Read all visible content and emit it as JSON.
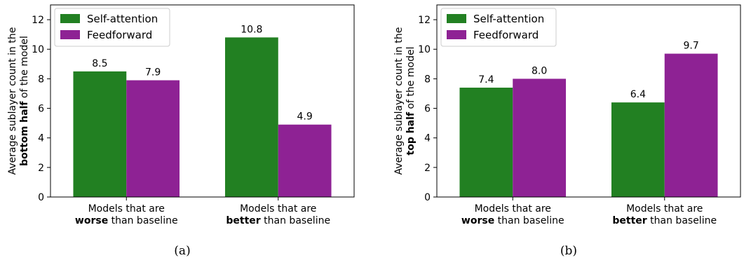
{
  "colors": {
    "self_attention": "#228022",
    "feedforward": "#8e2294"
  },
  "chart_data": [
    {
      "type": "bar",
      "panel_label": "(a)",
      "ylabel": [
        "Average sublayer count in the",
        "bottom half",
        " of the model"
      ],
      "ylim": [
        0,
        13
      ],
      "yticks": [
        0,
        2,
        4,
        6,
        8,
        10,
        12
      ],
      "categories": [
        [
          "Models that are",
          "worse",
          " than baseline"
        ],
        [
          "Models that are",
          "better",
          " than baseline"
        ]
      ],
      "series": [
        {
          "name": "Self-attention",
          "values": [
            8.5,
            10.8
          ],
          "labels": [
            "8.5",
            "10.8"
          ]
        },
        {
          "name": "Feedforward",
          "values": [
            7.9,
            4.9
          ],
          "labels": [
            "7.9",
            "4.9"
          ]
        }
      ],
      "legend": "top-left",
      "grid": false
    },
    {
      "type": "bar",
      "panel_label": "(b)",
      "ylabel": [
        "Average sublayer count in the",
        "top half",
        " of the model"
      ],
      "ylim": [
        0,
        13
      ],
      "yticks": [
        0,
        2,
        4,
        6,
        8,
        10,
        12
      ],
      "categories": [
        [
          "Models that are",
          "worse",
          " than baseline"
        ],
        [
          "Models that are",
          "better",
          " than baseline"
        ]
      ],
      "series": [
        {
          "name": "Self-attention",
          "values": [
            7.4,
            6.4
          ],
          "labels": [
            "7.4",
            "6.4"
          ]
        },
        {
          "name": "Feedforward",
          "values": [
            8.0,
            9.7
          ],
          "labels": [
            "8.0",
            "9.7"
          ]
        }
      ],
      "legend": "top-left",
      "grid": false
    }
  ]
}
